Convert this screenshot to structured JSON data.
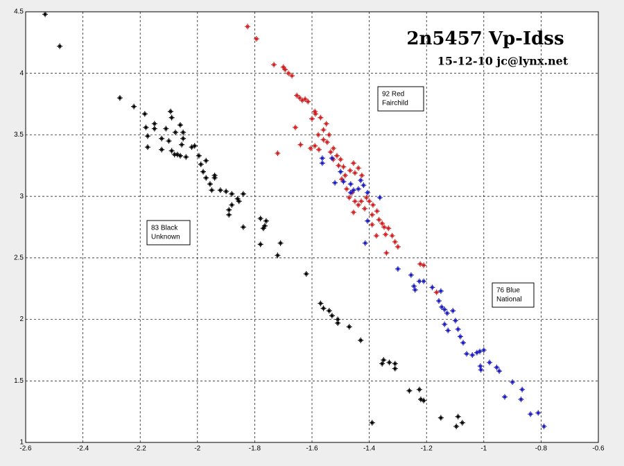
{
  "chart_data": {
    "type": "scatter",
    "title": "2n5457 Vp-Idss",
    "subtitle": "15-12-10 jc@lynx.net",
    "annotations": [
      [
        "92 Red",
        "Fairchild"
      ],
      [
        "83 Black",
        "Unknown"
      ],
      [
        "76 Blue",
        "National"
      ]
    ],
    "xlim": [
      -2.6,
      -0.6
    ],
    "ylim": [
      1,
      4.5
    ],
    "xticks": [
      -2.6,
      -2.4,
      -2.2,
      -2,
      -1.8,
      -1.6,
      -1.4,
      -1.2,
      -1,
      -0.8,
      -0.6
    ],
    "yticks": [
      1,
      1.5,
      2,
      2.5,
      3,
      3.5,
      4,
      4.5
    ],
    "grid": true,
    "series": [
      {
        "color": "#000000",
        "x": [
          -2.532,
          -2.481,
          -2.271,
          -2.222,
          -2.184,
          -2.18,
          -2.174,
          -2.174,
          -2.15,
          -2.15,
          -2.125,
          -2.125,
          -2.11,
          -2.1,
          -2.094,
          -2.09,
          -2.09,
          -2.08,
          -2.077,
          -2.07,
          -2.06,
          -2.06,
          -2.055,
          -2.05,
          -2.04,
          -2.05,
          -2.02,
          -2.01,
          -1.995,
          -1.988,
          -1.97,
          -1.97,
          -1.98,
          -1.95,
          -1.956,
          -1.94,
          -1.94,
          -1.92,
          -1.9,
          -1.88,
          -1.88,
          -1.86,
          -1.855,
          -1.84,
          -1.89,
          -1.89,
          -1.84,
          -1.78,
          -1.76,
          -1.765,
          -1.77,
          -1.78,
          -1.71,
          -1.72,
          -1.62,
          -1.57,
          -1.56,
          -1.54,
          -1.53,
          -1.51,
          -1.51,
          -1.47,
          -1.43,
          -1.355,
          -1.35,
          -1.33,
          -1.31,
          -1.31,
          -1.39,
          -1.26,
          -1.225,
          -1.21,
          -1.22,
          -1.15,
          -1.09,
          -1.075,
          -1.096
        ],
        "y": [
          4.48,
          4.22,
          3.8,
          3.73,
          3.67,
          3.56,
          3.49,
          3.4,
          3.59,
          3.55,
          3.47,
          3.38,
          3.55,
          3.45,
          3.69,
          3.64,
          3.37,
          3.34,
          3.52,
          3.34,
          3.33,
          3.58,
          3.42,
          3.47,
          3.32,
          3.52,
          3.4,
          3.41,
          3.33,
          3.26,
          3.29,
          3.15,
          3.2,
          3.05,
          3.1,
          3.15,
          3.17,
          3.05,
          3.04,
          3.02,
          2.93,
          2.98,
          2.96,
          3.02,
          2.89,
          2.85,
          2.75,
          2.82,
          2.8,
          2.76,
          2.74,
          2.61,
          2.62,
          2.52,
          2.37,
          2.13,
          2.09,
          2.07,
          2.03,
          2.0,
          1.97,
          1.94,
          1.83,
          1.64,
          1.67,
          1.65,
          1.64,
          1.6,
          1.16,
          1.42,
          1.43,
          1.34,
          1.35,
          1.2,
          1.21,
          1.16,
          1.13
        ]
      },
      {
        "color": "#d02020",
        "x": [
          -1.825,
          -1.794,
          -1.733,
          -1.7,
          -1.694,
          -1.682,
          -1.67,
          -1.653,
          -1.643,
          -1.634,
          -1.624,
          -1.614,
          -1.59,
          -1.6,
          -1.588,
          -1.57,
          -1.55,
          -1.56,
          -1.578,
          -1.54,
          -1.658,
          -1.72,
          -1.64,
          -1.605,
          -1.59,
          -1.576,
          -1.56,
          -1.547,
          -1.535,
          -1.525,
          -1.513,
          -1.5,
          -1.507,
          -1.49,
          -1.484,
          -1.496,
          -1.467,
          -1.455,
          -1.45,
          -1.438,
          -1.426,
          -1.479,
          -1.47,
          -1.46,
          -1.45,
          -1.438,
          -1.428,
          -1.416,
          -1.455,
          -1.41,
          -1.4,
          -1.387,
          -1.39,
          -1.373,
          -1.366,
          -1.355,
          -1.348,
          -1.343,
          -1.333,
          -1.32,
          -1.31,
          -1.3,
          -1.34,
          -1.375,
          -1.39,
          -1.222,
          -1.21,
          -1.165,
          -1.526
        ],
        "y": [
          4.38,
          4.28,
          4.07,
          4.05,
          4.03,
          4.0,
          3.98,
          3.82,
          3.8,
          3.78,
          3.79,
          3.77,
          3.69,
          3.63,
          3.67,
          3.64,
          3.59,
          3.54,
          3.5,
          3.5,
          3.56,
          3.35,
          3.42,
          3.39,
          3.41,
          3.38,
          3.46,
          3.44,
          3.36,
          3.39,
          3.33,
          3.3,
          3.25,
          3.24,
          3.17,
          3.14,
          3.21,
          3.27,
          3.19,
          3.23,
          3.17,
          3.06,
          2.99,
          3.03,
          2.96,
          2.93,
          2.96,
          2.9,
          2.87,
          2.99,
          2.96,
          2.93,
          2.85,
          2.88,
          2.81,
          2.78,
          2.75,
          2.69,
          2.74,
          2.68,
          2.63,
          2.59,
          2.54,
          2.68,
          2.77,
          2.45,
          2.44,
          2.22,
          3.3
        ]
      },
      {
        "color": "#1c1cc0",
        "x": [
          -1.564,
          -1.564,
          -1.53,
          -1.52,
          -1.5,
          -1.49,
          -1.465,
          -1.455,
          -1.465,
          -1.438,
          -1.43,
          -1.42,
          -1.406,
          -1.363,
          -1.406,
          -1.414,
          -1.3,
          -1.254,
          -1.244,
          -1.225,
          -1.24,
          -1.21,
          -1.18,
          -1.15,
          -1.157,
          -1.147,
          -1.137,
          -1.128,
          -1.108,
          -1.099,
          -1.137,
          -1.125,
          -1.09,
          -1.082,
          -1.072,
          -1.06,
          -1.04,
          -1.024,
          -1.014,
          -1.0,
          -1.012,
          -1.01,
          -0.98,
          -0.946,
          -0.955,
          -0.927,
          -0.9,
          -0.87,
          -0.866,
          -0.837,
          -0.81,
          -0.79
        ],
        "y": [
          3.31,
          3.27,
          3.31,
          3.11,
          3.2,
          3.12,
          3.1,
          3.05,
          3.03,
          3.06,
          3.13,
          3.09,
          3.03,
          2.99,
          2.8,
          2.62,
          2.41,
          2.36,
          2.27,
          2.31,
          2.24,
          2.31,
          2.26,
          2.23,
          2.15,
          2.1,
          2.08,
          2.05,
          2.07,
          1.99,
          1.96,
          1.91,
          1.92,
          1.86,
          1.81,
          1.72,
          1.71,
          1.73,
          1.74,
          1.75,
          1.62,
          1.59,
          1.65,
          1.58,
          1.61,
          1.37,
          1.49,
          1.35,
          1.43,
          1.23,
          1.24,
          1.13
        ]
      }
    ]
  }
}
